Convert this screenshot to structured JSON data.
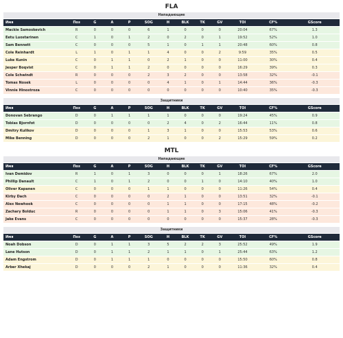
{
  "columns": [
    "Имя",
    "Поз",
    "G",
    "A",
    "P",
    "SOG",
    "H",
    "BLK",
    "TK",
    "GV",
    "TOI",
    "CF%",
    "GScore"
  ],
  "teams": [
    {
      "name": "FLA",
      "sections": [
        {
          "title": "Нападающие",
          "players": [
            {
              "name": "Mackie Samoskevich",
              "pos": "R",
              "g": "0",
              "a": "0",
              "p": "0",
              "sog": "6",
              "h": "1",
              "blk": "0",
              "tk": "0",
              "gv": "0",
              "toi": "20:04",
              "cf": "67%",
              "gscore": "1.3",
              "tone": "g"
            },
            {
              "name": "Eetu Luostarinen",
              "pos": "C",
              "g": "1",
              "a": "0",
              "p": "1",
              "sog": "2",
              "h": "0",
              "blk": "2",
              "tk": "0",
              "gv": "1",
              "toi": "19:52",
              "cf": "52%",
              "gscore": "1.0",
              "tone": "g"
            },
            {
              "name": "Sam Bennett",
              "pos": "C",
              "g": "0",
              "a": "0",
              "p": "0",
              "sog": "5",
              "h": "1",
              "blk": "0",
              "tk": "1",
              "gv": "1",
              "toi": "20:48",
              "cf": "60%",
              "gscore": "0.8",
              "tone": "g"
            },
            {
              "name": "Cole Reinhardt",
              "pos": "L",
              "g": "1",
              "a": "0",
              "p": "1",
              "sog": "1",
              "h": "4",
              "blk": "0",
              "tk": "0",
              "gv": "2",
              "toi": "9:59",
              "cf": "35%",
              "gscore": "0.5",
              "tone": "y"
            },
            {
              "name": "Luke Kunin",
              "pos": "C",
              "g": "0",
              "a": "1",
              "p": "1",
              "sog": "0",
              "h": "2",
              "blk": "1",
              "tk": "0",
              "gv": "0",
              "toi": "11:00",
              "cf": "30%",
              "gscore": "0.4",
              "tone": "y"
            },
            {
              "name": "Jesper Boqvist",
              "pos": "C",
              "g": "0",
              "a": "1",
              "p": "1",
              "sog": "2",
              "h": "0",
              "blk": "0",
              "tk": "0",
              "gv": "0",
              "toi": "16:29",
              "cf": "39%",
              "gscore": "0.3",
              "tone": "y"
            },
            {
              "name": "Cole Schwindt",
              "pos": "R",
              "g": "0",
              "a": "0",
              "p": "0",
              "sog": "2",
              "h": "3",
              "blk": "2",
              "tk": "0",
              "gv": "0",
              "toi": "13:58",
              "cf": "32%",
              "gscore": "-0.1",
              "tone": "o"
            },
            {
              "name": "Tomas Nosek",
              "pos": "L",
              "g": "0",
              "a": "0",
              "p": "0",
              "sog": "0",
              "h": "4",
              "blk": "1",
              "tk": "0",
              "gv": "1",
              "toi": "14:44",
              "cf": "36%",
              "gscore": "-0.3",
              "tone": "o"
            },
            {
              "name": "Vinnie Hinostroza",
              "pos": "C",
              "g": "0",
              "a": "0",
              "p": "0",
              "sog": "0",
              "h": "0",
              "blk": "0",
              "tk": "0",
              "gv": "0",
              "toi": "10:40",
              "cf": "35%",
              "gscore": "-0.3",
              "tone": "o"
            }
          ]
        },
        {
          "title": "Защитники",
          "players": [
            {
              "name": "Donovan Sebrango",
              "pos": "D",
              "g": "0",
              "a": "1",
              "p": "1",
              "sog": "1",
              "h": "1",
              "blk": "0",
              "tk": "0",
              "gv": "0",
              "toi": "19:24",
              "cf": "45%",
              "gscore": "0.9",
              "tone": "g"
            },
            {
              "name": "Tobias Bjornfot",
              "pos": "D",
              "g": "0",
              "a": "0",
              "p": "0",
              "sog": "0",
              "h": "2",
              "blk": "4",
              "tk": "0",
              "gv": "2",
              "toi": "16:44",
              "cf": "11%",
              "gscore": "0.8",
              "tone": "g"
            },
            {
              "name": "Dmitry Kulikov",
              "pos": "D",
              "g": "0",
              "a": "0",
              "p": "0",
              "sog": "1",
              "h": "3",
              "blk": "1",
              "tk": "0",
              "gv": "0",
              "toi": "15:53",
              "cf": "53%",
              "gscore": "0.6",
              "tone": "y"
            },
            {
              "name": "Mike Benning",
              "pos": "D",
              "g": "0",
              "a": "0",
              "p": "0",
              "sog": "2",
              "h": "1",
              "blk": "0",
              "tk": "0",
              "gv": "2",
              "toi": "15:29",
              "cf": "59%",
              "gscore": "0.2",
              "tone": "y"
            }
          ]
        }
      ]
    },
    {
      "name": "MTL",
      "sections": [
        {
          "title": "Нападающие",
          "players": [
            {
              "name": "Ivan Demidov",
              "pos": "R",
              "g": "1",
              "a": "0",
              "p": "1",
              "sog": "3",
              "h": "0",
              "blk": "0",
              "tk": "0",
              "gv": "1",
              "toi": "18:26",
              "cf": "67%",
              "gscore": "2.0",
              "tone": "g"
            },
            {
              "name": "Phillip Danault",
              "pos": "C",
              "g": "1",
              "a": "0",
              "p": "1",
              "sog": "2",
              "h": "0",
              "blk": "0",
              "tk": "1",
              "gv": "0",
              "toi": "14:10",
              "cf": "40%",
              "gscore": "1.0",
              "tone": "g"
            },
            {
              "name": "Oliver Kapanen",
              "pos": "C",
              "g": "0",
              "a": "0",
              "p": "0",
              "sog": "1",
              "h": "1",
              "blk": "0",
              "tk": "0",
              "gv": "0",
              "toi": "11:26",
              "cf": "54%",
              "gscore": "0.4",
              "tone": "y"
            },
            {
              "name": "Kirby Dach",
              "pos": "C",
              "g": "0",
              "a": "0",
              "p": "0",
              "sog": "0",
              "h": "2",
              "blk": "1",
              "tk": "0",
              "gv": "0",
              "toi": "13:51",
              "cf": "32%",
              "gscore": "-0.1",
              "tone": "o"
            },
            {
              "name": "Alex Newhook",
              "pos": "C",
              "g": "0",
              "a": "0",
              "p": "0",
              "sog": "0",
              "h": "1",
              "blk": "1",
              "tk": "0",
              "gv": "0",
              "toi": "17:15",
              "cf": "48%",
              "gscore": "-0.2",
              "tone": "o"
            },
            {
              "name": "Zachary Bolduc",
              "pos": "R",
              "g": "0",
              "a": "0",
              "p": "0",
              "sog": "0",
              "h": "1",
              "blk": "1",
              "tk": "0",
              "gv": "3",
              "toi": "15:06",
              "cf": "41%",
              "gscore": "-0.3",
              "tone": "o"
            },
            {
              "name": "Jake Evans",
              "pos": "C",
              "g": "0",
              "a": "0",
              "p": "0",
              "sog": "0",
              "h": "0",
              "blk": "0",
              "tk": "0",
              "gv": "0",
              "toi": "15:37",
              "cf": "28%",
              "gscore": "-0.3",
              "tone": "o"
            }
          ]
        },
        {
          "title": "Защитники",
          "players": [
            {
              "name": "Noah Dobson",
              "pos": "D",
              "g": "0",
              "a": "1",
              "p": "1",
              "sog": "3",
              "h": "5",
              "blk": "2",
              "tk": "2",
              "gv": "3",
              "toi": "25:52",
              "cf": "49%",
              "gscore": "1.9",
              "tone": "g"
            },
            {
              "name": "Lane Hutson",
              "pos": "D",
              "g": "0",
              "a": "1",
              "p": "1",
              "sog": "2",
              "h": "1",
              "blk": "1",
              "tk": "0",
              "gv": "1",
              "toi": "25:44",
              "cf": "63%",
              "gscore": "1.2",
              "tone": "g"
            },
            {
              "name": "Adam Engstrom",
              "pos": "D",
              "g": "0",
              "a": "1",
              "p": "1",
              "sog": "1",
              "h": "0",
              "blk": "0",
              "tk": "0",
              "gv": "0",
              "toi": "15:50",
              "cf": "60%",
              "gscore": "0.8",
              "tone": "y"
            },
            {
              "name": "Arber Xhekaj",
              "pos": "D",
              "g": "0",
              "a": "0",
              "p": "0",
              "sog": "2",
              "h": "1",
              "blk": "0",
              "tk": "0",
              "gv": "0",
              "toi": "11:36",
              "cf": "32%",
              "gscore": "0.4",
              "tone": "y"
            }
          ]
        }
      ]
    }
  ]
}
